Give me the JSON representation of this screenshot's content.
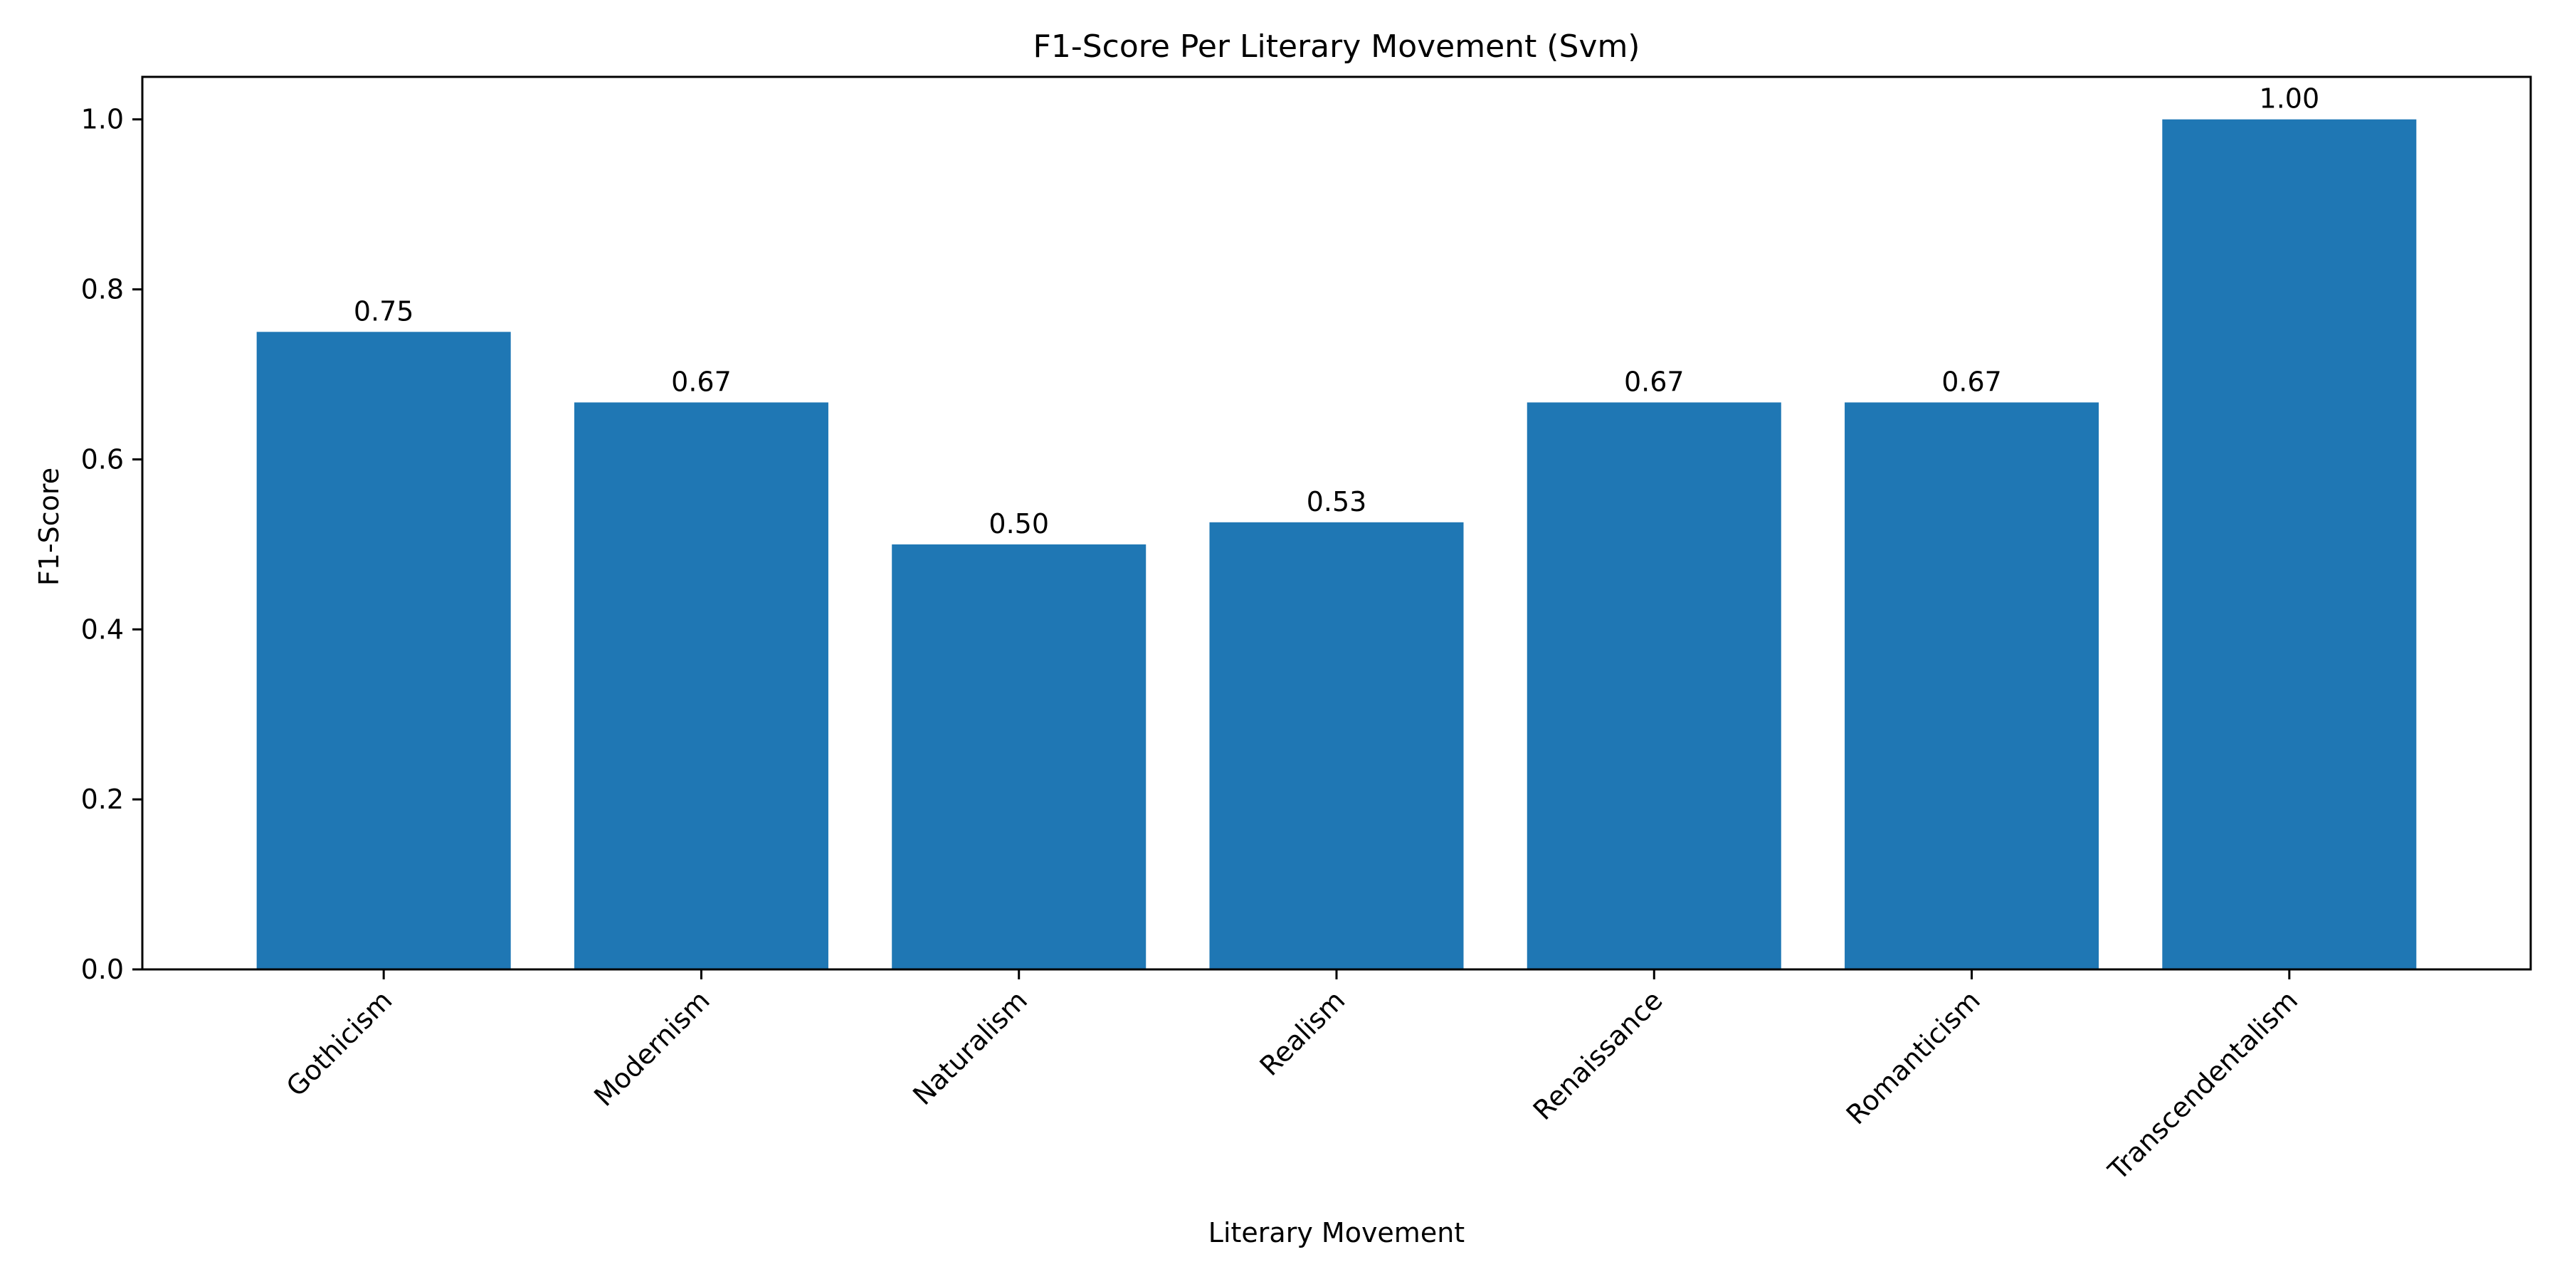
{
  "chart_data": {
    "type": "bar",
    "title": "F1-Score Per Literary Movement (Svm)",
    "xlabel": "Literary Movement",
    "ylabel": "F1-Score",
    "categories": [
      "Gothicism",
      "Modernism",
      "Naturalism",
      "Realism",
      "Renaissance",
      "Romanticism",
      "Transcendentalism"
    ],
    "values": [
      0.75,
      0.667,
      0.5,
      0.526,
      0.667,
      0.667,
      1.0
    ],
    "data_labels": [
      "0.75",
      "0.67",
      "0.50",
      "0.53",
      "0.67",
      "0.67",
      "1.00"
    ],
    "ylim": [
      0,
      1.05
    ],
    "yticks": [
      0.0,
      0.2,
      0.4,
      0.6,
      0.8,
      1.0
    ],
    "ytick_labels": [
      "0.0",
      "0.2",
      "0.4",
      "0.6",
      "0.8",
      "1.0"
    ],
    "grid": false,
    "legend": "none",
    "bar_color": "#1f77b4"
  }
}
